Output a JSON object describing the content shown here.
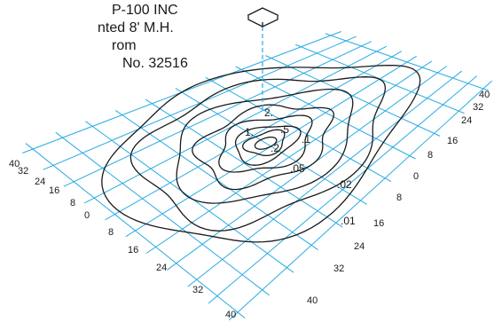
{
  "header": {
    "lines": [
      "P-100 INC",
      "nted 8' M.H.",
      "rom",
      "No. 32516"
    ]
  },
  "axes": {
    "left_depth_ticks": [
      "40",
      "32",
      "24",
      "16",
      "8",
      "0",
      "8",
      "16",
      "24",
      "32",
      "40"
    ],
    "right_depth_ticks": [
      "40",
      "32",
      "24",
      "16",
      "8",
      "0",
      "8",
      "16",
      "24",
      "32",
      "40"
    ]
  },
  "contours": {
    "labels": [
      ".01",
      ".02",
      ".05",
      ".1",
      ".2",
      ".5",
      "1.",
      "2."
    ]
  },
  "colors": {
    "grid": "#29abe2",
    "contour": "#1a1a1a",
    "text": "#1a1a1a"
  },
  "icons": {
    "luminaire": "luminaire-icon"
  }
}
